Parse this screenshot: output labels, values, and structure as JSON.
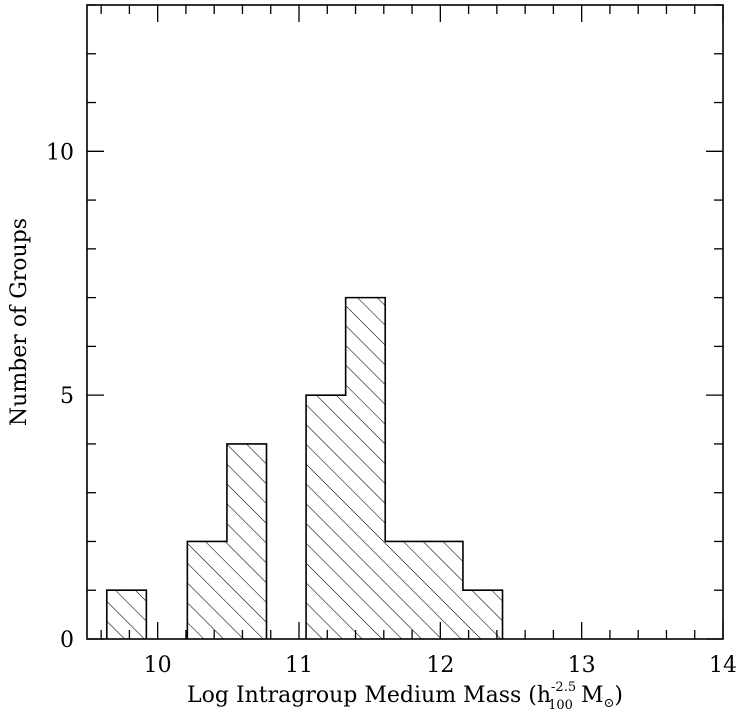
{
  "chart_data": {
    "type": "bar",
    "subtype": "histogram",
    "xlabel": "Log Intragroup Medium Mass (h",
    "xlabel_sup": "-2.5",
    "xlabel_sub": "100",
    "xlabel_unit": "M",
    "xlabel_close": ")",
    "ylabel": "Number of Groups",
    "xlim": [
      9.5,
      14
    ],
    "ylim": [
      0,
      13
    ],
    "x_ticks": [
      10,
      11,
      12,
      13,
      14
    ],
    "x_tick_labels": [
      "10",
      "11",
      "12",
      "13",
      "14"
    ],
    "y_ticks": [
      0,
      5,
      10
    ],
    "y_tick_labels": [
      "0",
      "5",
      "10"
    ],
    "bins": [
      {
        "x0": 9.64,
        "x1": 9.92,
        "count": 1
      },
      {
        "x0": 10.21,
        "x1": 10.49,
        "count": 2
      },
      {
        "x0": 10.49,
        "x1": 10.77,
        "count": 4
      },
      {
        "x0": 11.05,
        "x1": 11.33,
        "count": 5
      },
      {
        "x0": 11.33,
        "x1": 11.61,
        "count": 7
      },
      {
        "x0": 11.61,
        "x1": 11.89,
        "count": 2
      },
      {
        "x0": 11.89,
        "x1": 12.16,
        "count": 2
      },
      {
        "x0": 12.16,
        "x1": 12.44,
        "count": 1
      }
    ],
    "fill": "hatched",
    "grid": false,
    "legend": "none",
    "color": "#000000"
  }
}
